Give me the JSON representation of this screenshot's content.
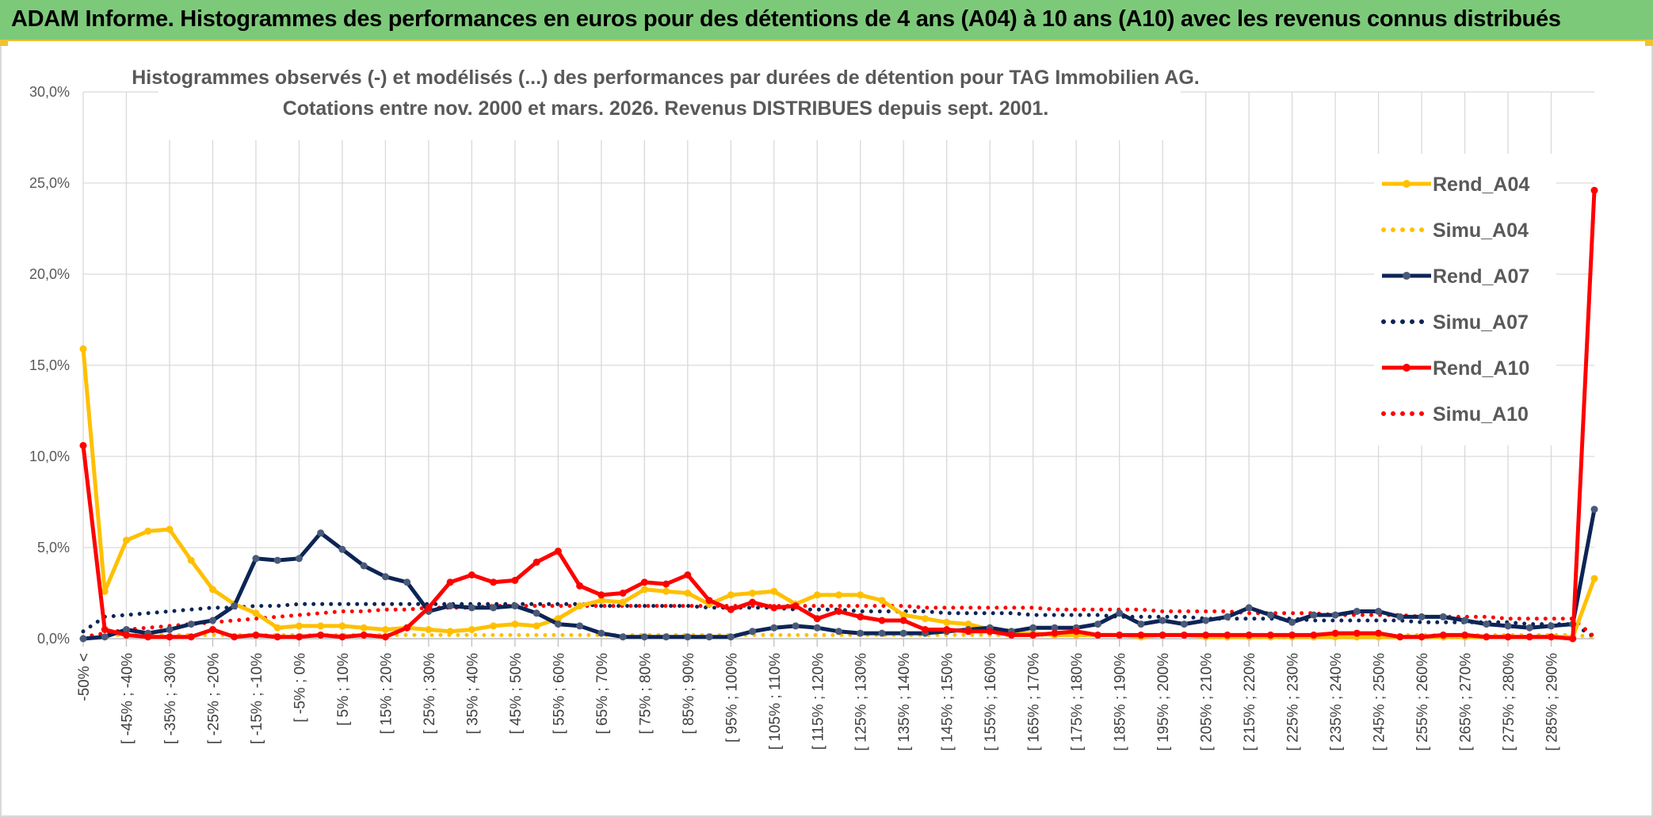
{
  "header": {
    "title": "ADAM Informe. Histogrammes des performances en euros pour des détentions de 4 ans (A04) à 10 ans (A10) avec les revenus connus distribués"
  },
  "colors": {
    "banner": "#7dc97a",
    "A04": "#ffc000",
    "A07": "#0d2456",
    "A10": "#ff0000",
    "grid": "#d9d9d9"
  },
  "chart_data": {
    "type": "line",
    "title_line1": "Histogrammes observés (-) et modélisés (...) des performances par durées de détention pour TAG Immobilien AG.",
    "title_line2": "Cotations entre nov. 2000 et mars. 2026. Revenus DISTRIBUES depuis sept. 2001.",
    "xlabel": "",
    "ylabel": "",
    "ylim": [
      0,
      30
    ],
    "yticks": [
      "0,0%",
      "5,0%",
      "10,0%",
      "15,0%",
      "20,0%",
      "25,0%",
      "30,0%"
    ],
    "grid": true,
    "legend_position": "right",
    "x_tick_labels": [
      "-50% <",
      "[ -45% ; -40%",
      "[ -35% ; -30%",
      "[ -25% ; -20%",
      "[ -15% ; -10%",
      "[ -5% ; 0%",
      "[ 5% ; 10%",
      "[ 15% ; 20%",
      "[ 25% ; 30%",
      "[ 35% ; 40%",
      "[ 45% ; 50%",
      "[ 55% ; 60%",
      "[ 65% ; 70%",
      "[ 75% ; 80%",
      "[ 85% ; 90%",
      "[ 95% ; 100%",
      "[ 105% ; 110%",
      "[ 115% ; 120%",
      "[ 125% ; 130%",
      "[ 135% ; 140%",
      "[ 145% ; 150%",
      "[ 155% ; 160%",
      "[ 165% ; 170%",
      "[ 175% ; 180%",
      "[ 185% ; 190%",
      "[ 195% ; 200%",
      "[ 205% ; 210%",
      "[ 215% ; 220%",
      "[ 225% ; 230%",
      "[ 235% ; 240%",
      "[ 245% ; 250%",
      "[ 255% ; 260%",
      "[ 265% ; 270%",
      "[ 275% ; 280%",
      "[ 285% ; 290%"
    ],
    "series": [
      {
        "name": "Rend_A04",
        "style": "solid",
        "color": "#ffc000",
        "values": [
          15.9,
          2.6,
          5.4,
          5.9,
          6.0,
          4.3,
          2.7,
          1.9,
          1.4,
          0.6,
          0.7,
          0.7,
          0.7,
          0.6,
          0.5,
          0.6,
          0.5,
          0.4,
          0.5,
          0.7,
          0.8,
          0.7,
          1.1,
          1.8,
          2.1,
          2.0,
          2.7,
          2.6,
          2.5,
          1.9,
          2.4,
          2.5,
          2.6,
          1.9,
          2.4,
          2.4,
          2.4,
          2.1,
          1.3,
          1.1,
          0.9,
          0.8,
          0.5,
          0.3,
          0.3,
          0.2,
          0.2,
          0.2,
          0.2,
          0.1,
          0.2,
          0.2,
          0.1,
          0.1,
          0.1,
          0.1,
          0.1,
          0.1,
          0.1,
          0.1,
          0.1,
          0.1,
          0.1,
          0.1,
          0.1,
          0.1,
          0.1,
          0.1,
          0.1,
          0.1,
          3.3
        ]
      },
      {
        "name": "Simu_A04",
        "style": "dotted",
        "color": "#ffc000",
        "values": [
          0.1,
          0.2,
          0.2,
          0.2,
          0.2,
          0.2,
          0.2,
          0.2,
          0.2,
          0.2,
          0.2,
          0.2,
          0.2,
          0.2,
          0.2,
          0.2,
          0.2,
          0.2,
          0.2,
          0.2,
          0.2,
          0.2,
          0.2,
          0.2,
          0.2,
          0.2,
          0.2,
          0.2,
          0.2,
          0.2,
          0.2,
          0.2,
          0.2,
          0.2,
          0.2,
          0.2,
          0.2,
          0.2,
          0.2,
          0.2,
          0.2,
          0.2,
          0.2,
          0.2,
          0.2,
          0.2,
          0.2,
          0.2,
          0.2,
          0.2,
          0.2,
          0.2,
          0.2,
          0.2,
          0.2,
          0.2,
          0.2,
          0.2,
          0.2,
          0.2,
          0.2,
          0.2,
          0.2,
          0.2,
          0.2,
          0.2,
          0.2,
          0.2,
          0.2,
          0.2,
          0.1
        ]
      },
      {
        "name": "Rend_A07",
        "style": "solid",
        "color": "#0d2456",
        "values": [
          0.0,
          0.1,
          0.5,
          0.3,
          0.5,
          0.8,
          1.0,
          1.8,
          4.4,
          4.3,
          4.4,
          5.8,
          4.9,
          4.0,
          3.4,
          3.1,
          1.5,
          1.8,
          1.7,
          1.7,
          1.8,
          1.4,
          0.8,
          0.7,
          0.3,
          0.1,
          0.1,
          0.1,
          0.1,
          0.1,
          0.1,
          0.4,
          0.6,
          0.7,
          0.6,
          0.4,
          0.3,
          0.3,
          0.3,
          0.3,
          0.4,
          0.5,
          0.6,
          0.4,
          0.6,
          0.6,
          0.6,
          0.8,
          1.4,
          0.8,
          1.0,
          0.8,
          1.0,
          1.2,
          1.7,
          1.3,
          0.9,
          1.3,
          1.3,
          1.5,
          1.5,
          1.2,
          1.2,
          1.2,
          1.0,
          0.8,
          0.7,
          0.6,
          0.7,
          0.8,
          7.1
        ]
      },
      {
        "name": "Simu_A07",
        "style": "dotted",
        "color": "#0d2456",
        "values": [
          0.4,
          1.2,
          1.3,
          1.4,
          1.5,
          1.6,
          1.7,
          1.7,
          1.8,
          1.8,
          1.9,
          1.9,
          1.9,
          1.9,
          1.9,
          1.9,
          1.9,
          1.9,
          1.9,
          1.9,
          1.9,
          1.9,
          1.9,
          1.9,
          1.8,
          1.8,
          1.8,
          1.8,
          1.8,
          1.7,
          1.7,
          1.7,
          1.7,
          1.6,
          1.6,
          1.6,
          1.5,
          1.5,
          1.5,
          1.5,
          1.4,
          1.4,
          1.4,
          1.4,
          1.3,
          1.3,
          1.3,
          1.3,
          1.2,
          1.2,
          1.2,
          1.2,
          1.1,
          1.1,
          1.1,
          1.1,
          1.1,
          1.0,
          1.0,
          1.0,
          1.0,
          1.0,
          0.9,
          0.9,
          0.9,
          0.9,
          0.9,
          0.8,
          0.8,
          0.8,
          0.1
        ]
      },
      {
        "name": "Rend_A10",
        "style": "solid",
        "color": "#ff0000",
        "values": [
          10.6,
          0.5,
          0.2,
          0.1,
          0.1,
          0.1,
          0.5,
          0.1,
          0.2,
          0.1,
          0.1,
          0.2,
          0.1,
          0.2,
          0.1,
          0.6,
          1.7,
          3.1,
          3.5,
          3.1,
          3.2,
          4.2,
          4.8,
          2.9,
          2.4,
          2.5,
          3.1,
          3.0,
          3.5,
          2.1,
          1.6,
          2.0,
          1.7,
          1.8,
          1.1,
          1.5,
          1.2,
          1.0,
          1.0,
          0.5,
          0.5,
          0.4,
          0.4,
          0.2,
          0.2,
          0.3,
          0.4,
          0.2,
          0.2,
          0.2,
          0.2,
          0.2,
          0.2,
          0.2,
          0.2,
          0.2,
          0.2,
          0.2,
          0.3,
          0.3,
          0.3,
          0.1,
          0.1,
          0.2,
          0.2,
          0.1,
          0.1,
          0.1,
          0.1,
          0.0,
          24.6
        ]
      },
      {
        "name": "Simu_A10",
        "style": "dotted",
        "color": "#ff0000",
        "values": [
          0.1,
          0.3,
          0.5,
          0.6,
          0.7,
          0.8,
          0.9,
          1.0,
          1.1,
          1.2,
          1.3,
          1.4,
          1.5,
          1.5,
          1.6,
          1.6,
          1.7,
          1.7,
          1.7,
          1.8,
          1.8,
          1.8,
          1.8,
          1.8,
          1.8,
          1.8,
          1.8,
          1.8,
          1.8,
          1.8,
          1.8,
          1.8,
          1.8,
          1.8,
          1.8,
          1.8,
          1.8,
          1.8,
          1.8,
          1.7,
          1.7,
          1.7,
          1.7,
          1.7,
          1.7,
          1.6,
          1.6,
          1.6,
          1.6,
          1.6,
          1.5,
          1.5,
          1.5,
          1.5,
          1.4,
          1.4,
          1.4,
          1.4,
          1.3,
          1.3,
          1.3,
          1.3,
          1.2,
          1.2,
          1.2,
          1.2,
          1.1,
          1.1,
          1.1,
          1.1,
          0.1
        ]
      }
    ]
  }
}
